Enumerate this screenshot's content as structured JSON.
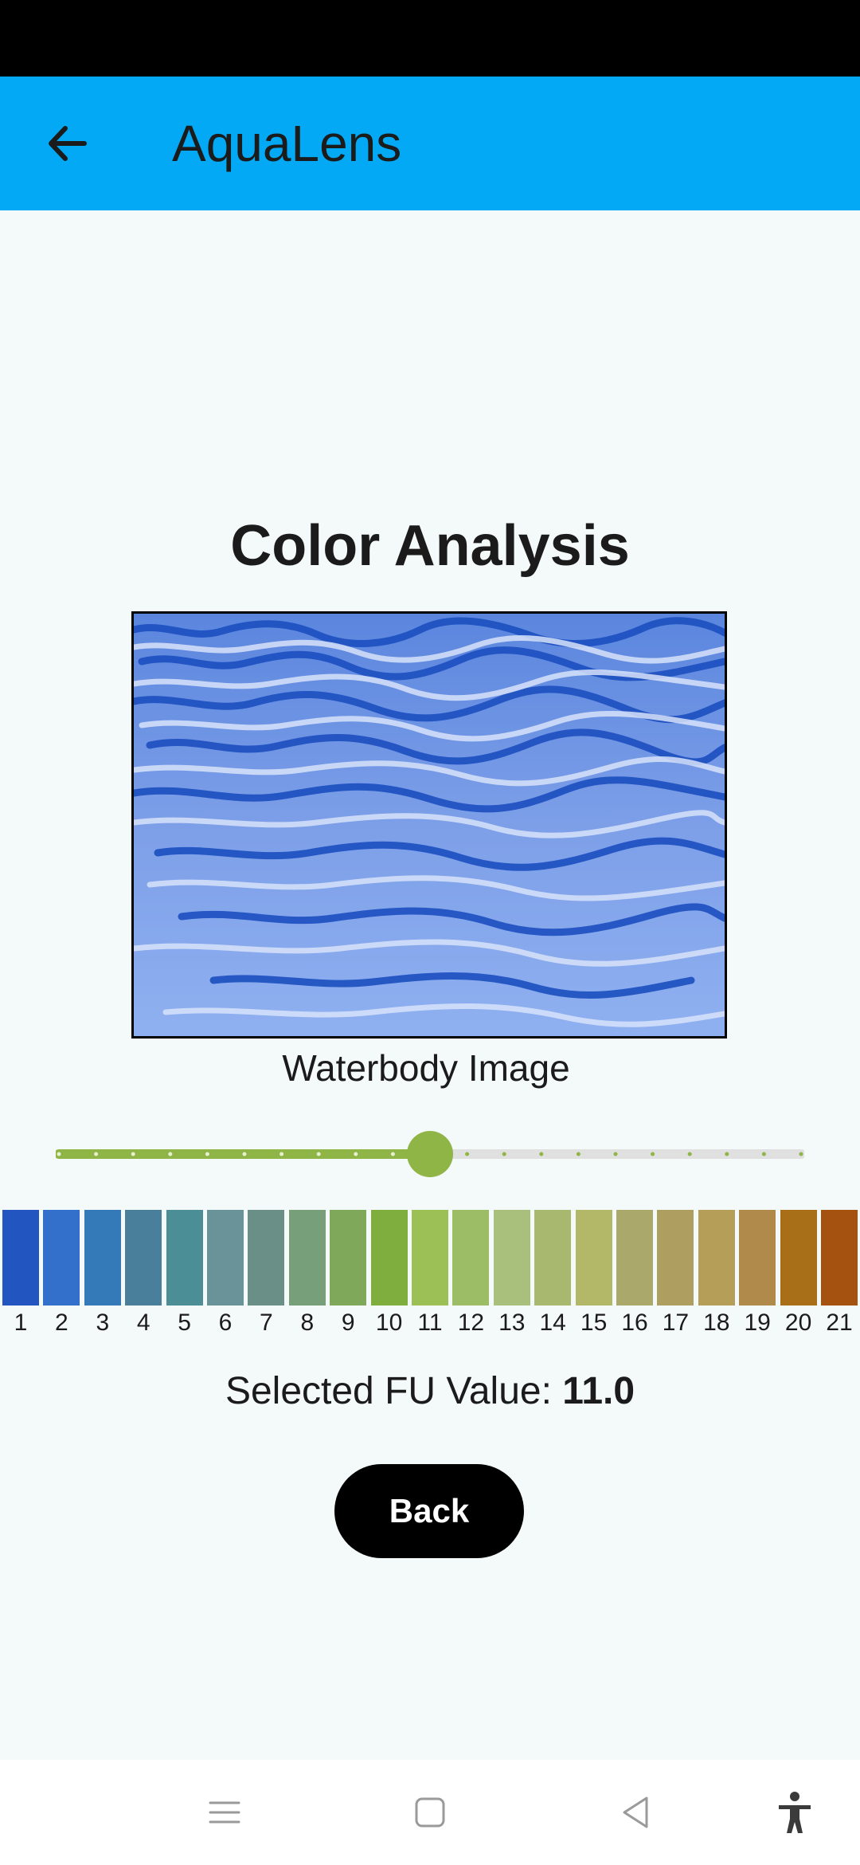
{
  "app_bar": {
    "title": "AquaLens",
    "back_icon": "arrow-left-icon",
    "color": "#03a9f4"
  },
  "main": {
    "heading": "Color Analysis",
    "image_caption": "Waterbody Image",
    "slider": {
      "min": 1,
      "max": 21,
      "value": 11,
      "active_color": "#8fb546",
      "inactive_color": "#e0e0e0"
    },
    "fu_label": "Selected FU Value:",
    "fu_value": "11.0",
    "back_button": "Back"
  },
  "forel_ule_scale": {
    "labels": [
      "1",
      "2",
      "3",
      "4",
      "5",
      "6",
      "7",
      "8",
      "9",
      "10",
      "11",
      "12",
      "13",
      "14",
      "15",
      "16",
      "17",
      "18",
      "19",
      "20",
      "21"
    ],
    "colors": [
      "#2255c0",
      "#3270cc",
      "#3479b8",
      "#4a7f9c",
      "#4c8e96",
      "#6a9399",
      "#6a8f86",
      "#779f7a",
      "#7fa85a",
      "#7fae3e",
      "#9cc055",
      "#9cbc66",
      "#a8c07c",
      "#a8b86e",
      "#b2b868",
      "#aaa86a",
      "#ae9e60",
      "#b49e58",
      "#b08a4a",
      "#a86e18",
      "#a5510f"
    ]
  },
  "nav_bar": {
    "icons": [
      "menu-icon",
      "home-square-icon",
      "back-triangle-icon",
      "accessibility-icon"
    ]
  }
}
